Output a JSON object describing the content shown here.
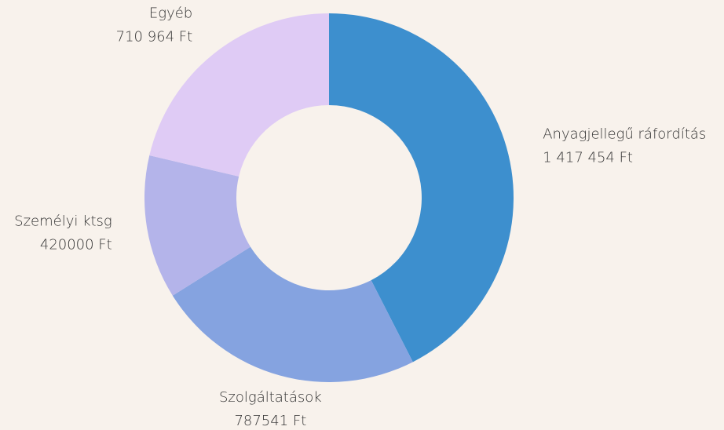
{
  "chart_data": {
    "type": "donut",
    "categories": [
      "Anyagjellegű ráfordítás",
      "Szolgáltatások",
      "Személyi ktsg",
      "Egyéb"
    ],
    "values": [
      1417454,
      787541,
      420000,
      710964
    ],
    "value_labels": [
      "1 417 454 Ft",
      "787541 Ft",
      "420000 Ft",
      "710 964 Ft"
    ],
    "colors": [
      "#3d8fce",
      "#85a3e0",
      "#b4b4ea",
      "#dfcbf5"
    ]
  }
}
